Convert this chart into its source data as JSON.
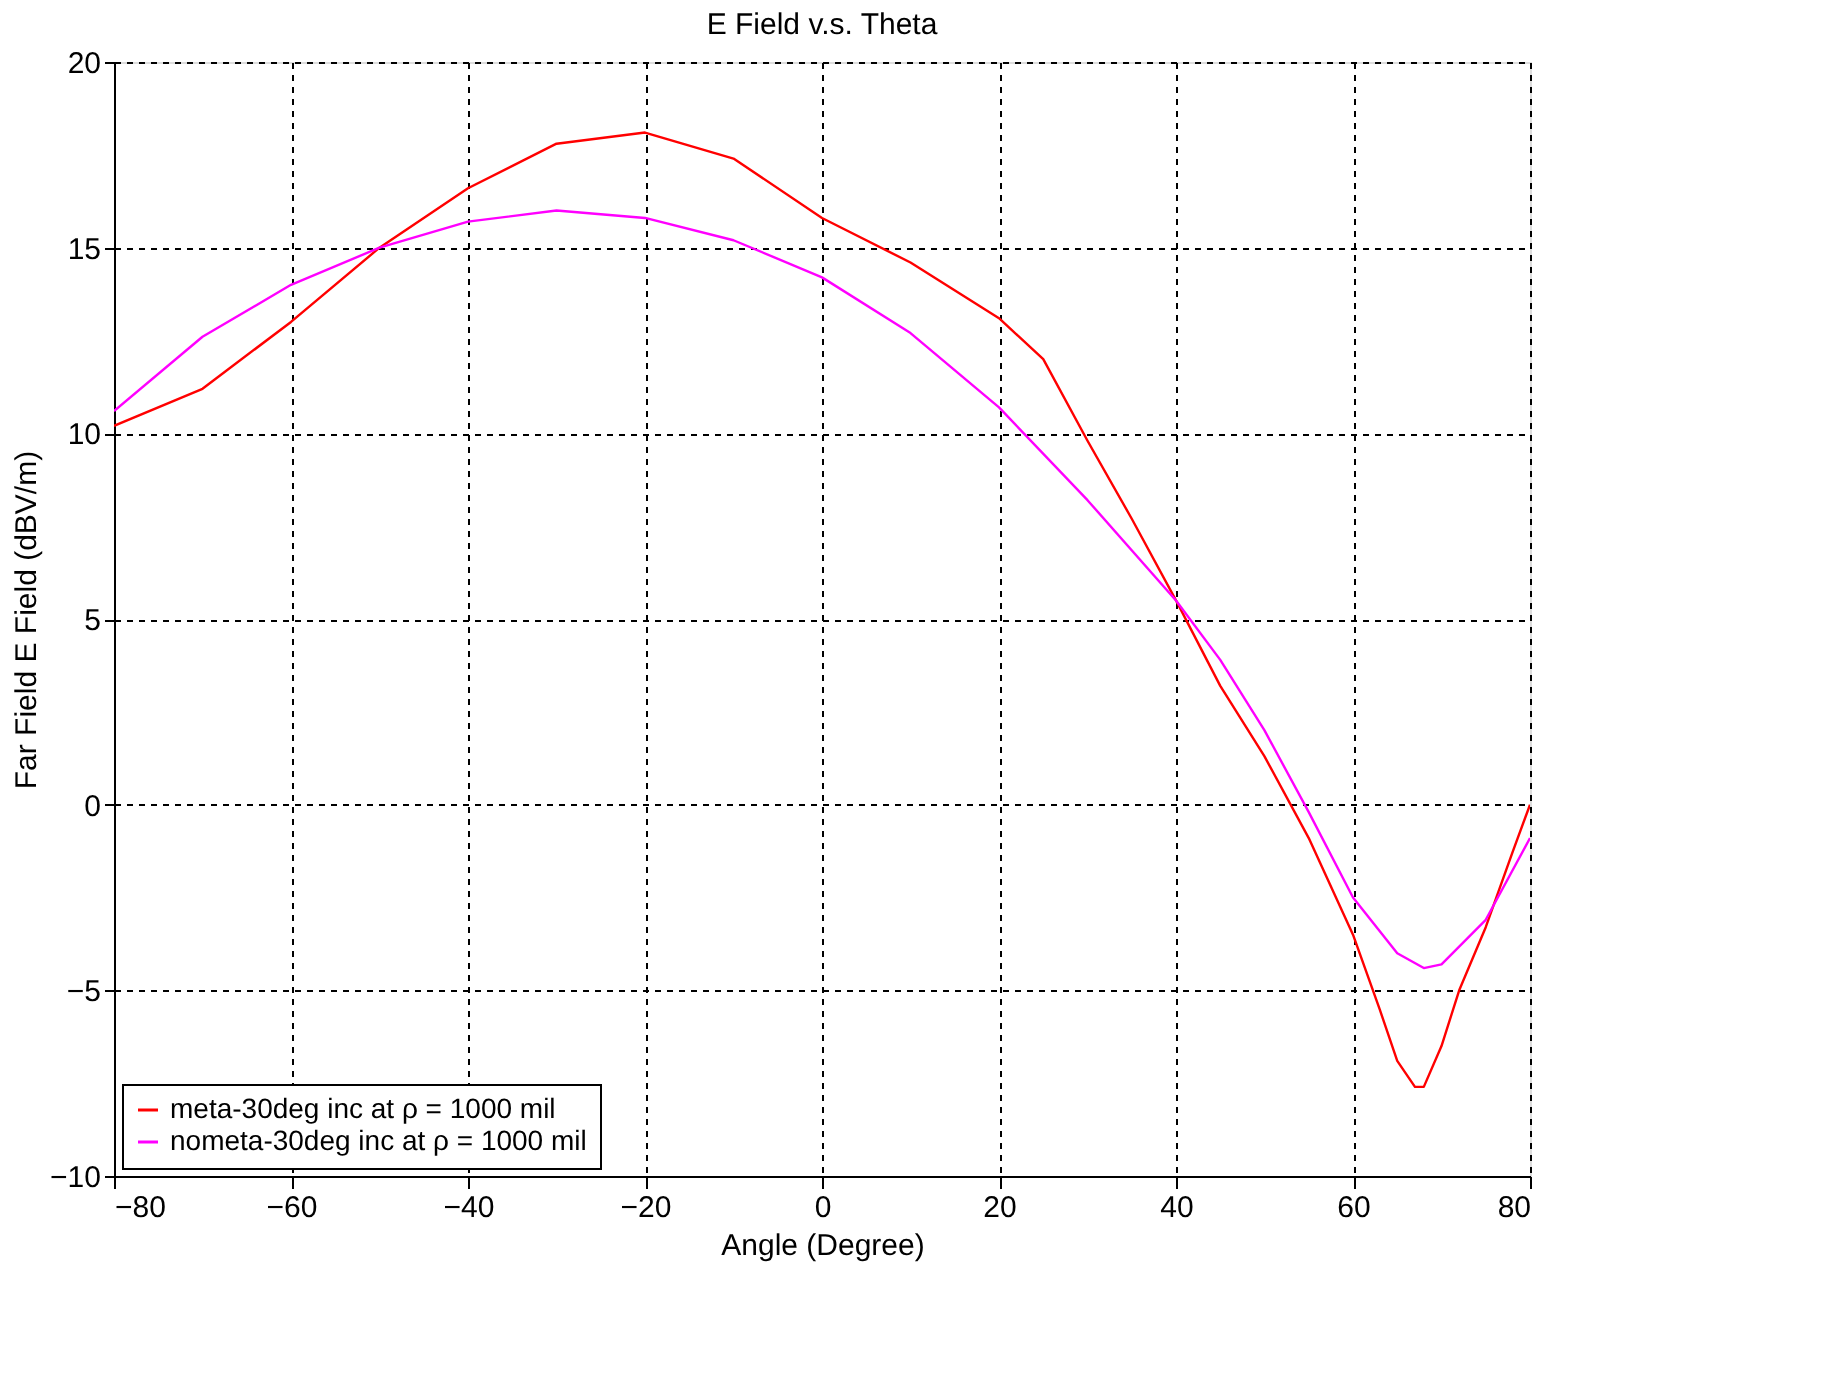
{
  "chart_data": {
    "type": "line",
    "title": "E Field v.s. Theta",
    "xlabel": "Angle (Degree)",
    "ylabel": "Far Field E Field (dBV/m)",
    "xlim": [
      -80,
      80
    ],
    "xticks": [
      -80,
      -60,
      -40,
      -20,
      0,
      20,
      40,
      60,
      80
    ],
    "ylim": [
      -10,
      20
    ],
    "yticks": [
      -10,
      -5,
      0,
      5,
      10,
      15,
      20
    ],
    "grid": true,
    "legend": "bottom left",
    "marker": "none",
    "line_style": "solid",
    "series": [
      {
        "name": "meta-30deg inc at ρ = 1000 mil",
        "color": "#ff0000",
        "x": [
          -80,
          -70,
          -60,
          -50,
          -40,
          -30,
          -20,
          -10,
          0,
          10,
          20,
          25,
          30,
          35,
          40,
          45,
          50,
          55,
          60,
          63,
          65,
          67,
          68,
          70,
          72,
          75,
          78,
          80
        ],
        "values": [
          10.2,
          11.2,
          13.0,
          15.0,
          16.6,
          17.8,
          18.1,
          17.4,
          15.8,
          14.6,
          13.1,
          12.0,
          9.8,
          7.7,
          5.5,
          3.2,
          1.3,
          -0.9,
          -3.5,
          -5.5,
          -6.9,
          -7.6,
          -7.6,
          -6.5,
          -5.0,
          -3.3,
          -1.3,
          0
        ]
      },
      {
        "name": "nometa-30deg inc at ρ = 1000 mil",
        "color": "#ff00ff",
        "x": [
          -80,
          -70,
          -60,
          -50,
          -40,
          -30,
          -20,
          -10,
          0,
          10,
          20,
          30,
          40,
          45,
          50,
          55,
          60,
          65,
          68,
          70,
          75,
          80
        ],
        "values": [
          10.6,
          12.6,
          14.0,
          15.0,
          15.7,
          16.0,
          15.8,
          15.2,
          14.2,
          12.7,
          10.7,
          8.2,
          5.5,
          3.9,
          2.0,
          -0.2,
          -2.5,
          -4.0,
          -4.4,
          -4.3,
          -3.1,
          -0.9
        ]
      }
    ]
  }
}
